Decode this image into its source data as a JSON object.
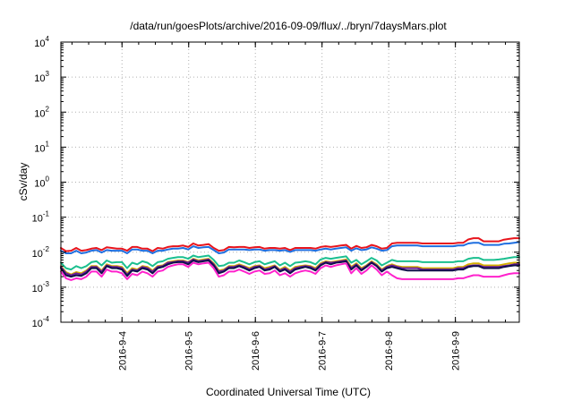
{
  "chart_data": {
    "type": "line",
    "title": "/data/run/goesPlots/archive/2016-09-09/flux/../bryn/7daysMars.plot",
    "xlabel": "Coordinated Universal Time (UTC)",
    "ylabel": "cSv/day",
    "y_scale": "log",
    "ylim": [
      0.0001,
      10000
    ],
    "y_ticks": [
      {
        "base": "10",
        "exp": "4"
      },
      {
        "base": "10",
        "exp": "3"
      },
      {
        "base": "10",
        "exp": "2"
      },
      {
        "base": "10",
        "exp": "1"
      },
      {
        "base": "10",
        "exp": "0"
      },
      {
        "base": "10",
        "exp": "-1"
      },
      {
        "base": "10",
        "exp": "-2"
      },
      {
        "base": "10",
        "exp": "-3"
      },
      {
        "base": "10",
        "exp": "-4"
      }
    ],
    "xlim": [
      "2016-09-03T02:00",
      "2016-09-09T23:00"
    ],
    "x_ticks": [
      "2016-9-4",
      "2016-9-5",
      "2016-9-6",
      "2016-9-7",
      "2016-9-8",
      "2016-9-9"
    ],
    "grid": true,
    "legend": "none",
    "series": [
      {
        "color": "#e8141c",
        "y": [
          0.0132,
          0.0107,
          0.011,
          0.0132,
          0.011,
          0.0115,
          0.0126,
          0.0132,
          0.0115,
          0.0138,
          0.0132,
          0.0126,
          0.0126,
          0.011,
          0.0141,
          0.0141,
          0.0126,
          0.0126,
          0.0107,
          0.0132,
          0.0126,
          0.0141,
          0.0148,
          0.0148,
          0.0155,
          0.0141,
          0.0178,
          0.0155,
          0.0162,
          0.017,
          0.0132,
          0.011,
          0.0115,
          0.0141,
          0.0138,
          0.0141,
          0.0141,
          0.0132,
          0.0138,
          0.0141,
          0.0126,
          0.0132,
          0.0132,
          0.0126,
          0.0132,
          0.0115,
          0.0132,
          0.0132,
          0.0132,
          0.0132,
          0.0126,
          0.0141,
          0.0148,
          0.0141,
          0.0148,
          0.0155,
          0.0162,
          0.0126,
          0.0151,
          0.0132,
          0.0138,
          0.0162,
          0.0148,
          0.0126,
          0.0132,
          0.0178,
          0.0186,
          0.0186,
          0.0186,
          0.0186,
          0.0186,
          0.0178,
          0.0178,
          0.0178,
          0.0178,
          0.0178,
          0.0178,
          0.0178,
          0.0186,
          0.0186,
          0.0231,
          0.0251,
          0.0251,
          0.0204,
          0.0204,
          0.0204,
          0.0204,
          0.0229,
          0.024,
          0.0251,
          0.0251
        ]
      },
      {
        "color": "#1f6fe0",
        "y": [
          0.011,
          0.0093,
          0.0093,
          0.011,
          0.0093,
          0.0098,
          0.011,
          0.0115,
          0.0098,
          0.0115,
          0.011,
          0.011,
          0.011,
          0.0093,
          0.012,
          0.012,
          0.011,
          0.011,
          0.0093,
          0.011,
          0.011,
          0.012,
          0.0126,
          0.0126,
          0.0132,
          0.012,
          0.0148,
          0.0132,
          0.0138,
          0.0141,
          0.0115,
          0.0093,
          0.0098,
          0.012,
          0.012,
          0.012,
          0.012,
          0.0115,
          0.012,
          0.012,
          0.011,
          0.0115,
          0.0115,
          0.011,
          0.0115,
          0.0102,
          0.0115,
          0.0115,
          0.0115,
          0.0115,
          0.011,
          0.012,
          0.0126,
          0.012,
          0.0126,
          0.0132,
          0.0138,
          0.011,
          0.0129,
          0.0115,
          0.012,
          0.0138,
          0.0126,
          0.011,
          0.0115,
          0.0148,
          0.0155,
          0.0155,
          0.0155,
          0.0155,
          0.0155,
          0.0148,
          0.0148,
          0.0148,
          0.0148,
          0.0148,
          0.0148,
          0.0148,
          0.0155,
          0.0155,
          0.0178,
          0.0186,
          0.0186,
          0.0162,
          0.0162,
          0.0162,
          0.0162,
          0.0174,
          0.0178,
          0.0186,
          0.0195
        ]
      },
      {
        "color": "#1bbf8f",
        "y": [
          0.005,
          0.0035,
          0.0032,
          0.004,
          0.0035,
          0.004,
          0.0052,
          0.0055,
          0.0042,
          0.0058,
          0.005,
          0.0052,
          0.0052,
          0.0035,
          0.005,
          0.0045,
          0.0055,
          0.005,
          0.004,
          0.0052,
          0.0055,
          0.0065,
          0.0069,
          0.0072,
          0.0072,
          0.0065,
          0.008,
          0.0072,
          0.0076,
          0.008,
          0.006,
          0.004,
          0.0042,
          0.005,
          0.005,
          0.0058,
          0.0052,
          0.0045,
          0.0052,
          0.0055,
          0.0045,
          0.005,
          0.0055,
          0.0042,
          0.005,
          0.004,
          0.005,
          0.0052,
          0.0055,
          0.0052,
          0.0045,
          0.0062,
          0.0069,
          0.0065,
          0.0069,
          0.0072,
          0.0076,
          0.005,
          0.006,
          0.0045,
          0.0055,
          0.0069,
          0.0058,
          0.0042,
          0.005,
          0.006,
          0.0055,
          0.0055,
          0.0055,
          0.0055,
          0.0055,
          0.0052,
          0.0052,
          0.0052,
          0.0052,
          0.0052,
          0.0052,
          0.0052,
          0.0055,
          0.0055,
          0.0065,
          0.0069,
          0.0069,
          0.006,
          0.006,
          0.006,
          0.0062,
          0.0065,
          0.0069,
          0.0072,
          0.0072
        ]
      },
      {
        "color": "#d4b000",
        "y": [
          0.004,
          0.0027,
          0.0023,
          0.0027,
          0.0025,
          0.003,
          0.004,
          0.004,
          0.003,
          0.0045,
          0.004,
          0.004,
          0.0038,
          0.0025,
          0.0035,
          0.0032,
          0.004,
          0.0038,
          0.003,
          0.004,
          0.0042,
          0.0052,
          0.0055,
          0.0058,
          0.0058,
          0.0052,
          0.0065,
          0.0058,
          0.0062,
          0.0065,
          0.0048,
          0.003,
          0.0032,
          0.004,
          0.004,
          0.0045,
          0.004,
          0.0035,
          0.004,
          0.0042,
          0.0035,
          0.0038,
          0.0042,
          0.0032,
          0.0038,
          0.003,
          0.0038,
          0.004,
          0.0042,
          0.004,
          0.0035,
          0.0048,
          0.0055,
          0.0052,
          0.0055,
          0.0058,
          0.0062,
          0.0038,
          0.0048,
          0.0035,
          0.0042,
          0.0055,
          0.0045,
          0.0032,
          0.004,
          0.0045,
          0.004,
          0.0038,
          0.0038,
          0.0038,
          0.0038,
          0.0035,
          0.0035,
          0.0035,
          0.0035,
          0.0035,
          0.0035,
          0.0035,
          0.0038,
          0.0038,
          0.0045,
          0.0048,
          0.0048,
          0.0042,
          0.0042,
          0.0042,
          0.0042,
          0.0045,
          0.0048,
          0.005,
          0.005
        ]
      },
      {
        "color": "#6a1a9a",
        "y": [
          0.0038,
          0.0025,
          0.0022,
          0.0025,
          0.0023,
          0.0028,
          0.0038,
          0.0038,
          0.0028,
          0.0042,
          0.0038,
          0.0038,
          0.0035,
          0.0023,
          0.0032,
          0.003,
          0.0038,
          0.0035,
          0.0028,
          0.0038,
          0.004,
          0.005,
          0.0052,
          0.0055,
          0.0055,
          0.005,
          0.0062,
          0.0055,
          0.0058,
          0.0062,
          0.0045,
          0.0028,
          0.003,
          0.0038,
          0.0038,
          0.0042,
          0.0038,
          0.0032,
          0.0038,
          0.004,
          0.0032,
          0.0035,
          0.004,
          0.003,
          0.0035,
          0.0028,
          0.0035,
          0.0038,
          0.004,
          0.0038,
          0.0032,
          0.0045,
          0.0052,
          0.005,
          0.0052,
          0.0055,
          0.0058,
          0.0035,
          0.0045,
          0.0032,
          0.004,
          0.0052,
          0.0042,
          0.003,
          0.0038,
          0.0042,
          0.0038,
          0.0035,
          0.0035,
          0.0035,
          0.0035,
          0.0032,
          0.0032,
          0.0032,
          0.0032,
          0.0032,
          0.0032,
          0.0032,
          0.0035,
          0.0035,
          0.004,
          0.0042,
          0.0042,
          0.0038,
          0.0038,
          0.0038,
          0.0038,
          0.004,
          0.0042,
          0.0045,
          0.0045
        ]
      },
      {
        "color": "#10104a",
        "y": [
          0.0035,
          0.0022,
          0.002,
          0.0022,
          0.0021,
          0.0025,
          0.0035,
          0.0035,
          0.0025,
          0.004,
          0.0035,
          0.0035,
          0.0032,
          0.0021,
          0.003,
          0.0028,
          0.0035,
          0.0032,
          0.0025,
          0.0035,
          0.0038,
          0.0045,
          0.005,
          0.0052,
          0.0052,
          0.0045,
          0.0058,
          0.0052,
          0.0055,
          0.0058,
          0.0042,
          0.0025,
          0.0028,
          0.0035,
          0.0035,
          0.004,
          0.0035,
          0.003,
          0.0035,
          0.0038,
          0.003,
          0.0032,
          0.0038,
          0.0028,
          0.0032,
          0.0025,
          0.0032,
          0.0035,
          0.0038,
          0.0035,
          0.003,
          0.0042,
          0.005,
          0.0045,
          0.005,
          0.0052,
          0.0055,
          0.0032,
          0.0042,
          0.003,
          0.0038,
          0.005,
          0.004,
          0.0028,
          0.0035,
          0.0038,
          0.0035,
          0.0032,
          0.003,
          0.003,
          0.003,
          0.003,
          0.003,
          0.003,
          0.003,
          0.003,
          0.003,
          0.003,
          0.0032,
          0.0032,
          0.0038,
          0.004,
          0.004,
          0.0035,
          0.0035,
          0.0035,
          0.0035,
          0.0038,
          0.004,
          0.0042,
          0.0042
        ]
      },
      {
        "color": "#ff22cc",
        "y": [
          0.0028,
          0.0018,
          0.0016,
          0.0018,
          0.0017,
          0.002,
          0.0028,
          0.0028,
          0.002,
          0.0032,
          0.0028,
          0.0028,
          0.0025,
          0.0017,
          0.0024,
          0.0022,
          0.0028,
          0.0025,
          0.002,
          0.0028,
          0.003,
          0.0038,
          0.0042,
          0.0045,
          0.0045,
          0.0038,
          0.005,
          0.0045,
          0.0048,
          0.005,
          0.0035,
          0.002,
          0.0022,
          0.0028,
          0.0028,
          0.0032,
          0.0028,
          0.0024,
          0.0028,
          0.003,
          0.0024,
          0.0025,
          0.003,
          0.0022,
          0.0025,
          0.002,
          0.0025,
          0.0028,
          0.003,
          0.0028,
          0.0024,
          0.0035,
          0.0042,
          0.0038,
          0.0042,
          0.0045,
          0.0048,
          0.0025,
          0.0035,
          0.0024,
          0.003,
          0.0042,
          0.0032,
          0.0022,
          0.0028,
          0.0022,
          0.0018,
          0.0017,
          0.0017,
          0.0017,
          0.0017,
          0.0017,
          0.0017,
          0.0017,
          0.0017,
          0.0017,
          0.0017,
          0.0017,
          0.0018,
          0.0018,
          0.002,
          0.0022,
          0.0022,
          0.002,
          0.002,
          0.002,
          0.002,
          0.0022,
          0.0024,
          0.0025,
          0.0025
        ]
      }
    ]
  }
}
